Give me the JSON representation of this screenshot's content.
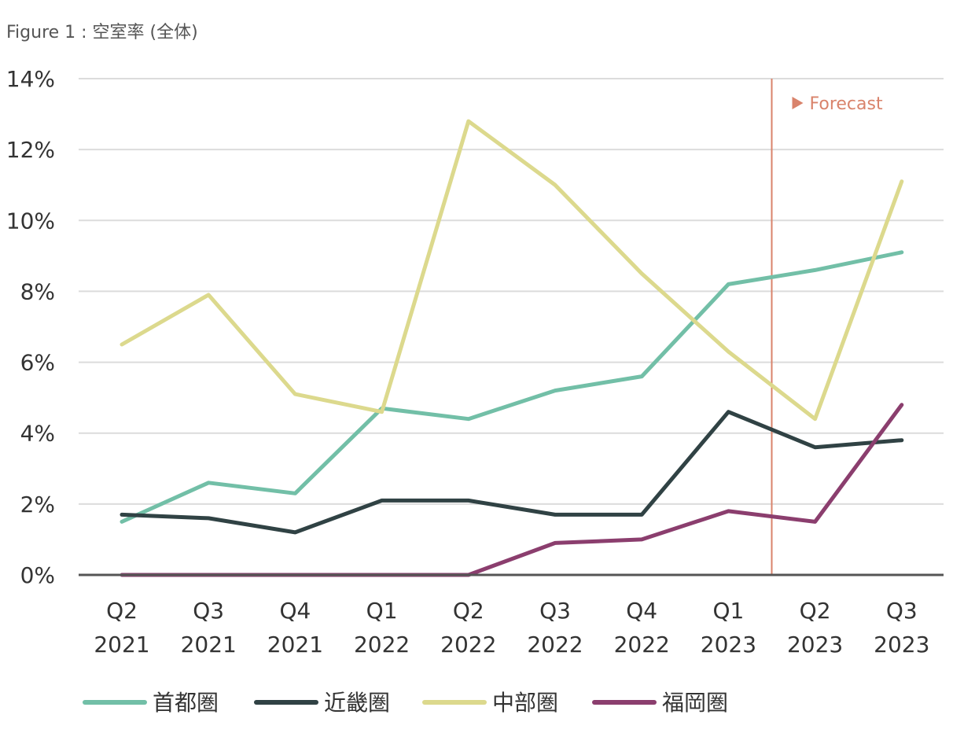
{
  "title": "Figure 1 : 空室率 (全体)",
  "forecast_label": "Forecast",
  "chart_data": {
    "type": "line",
    "title": "Figure 1 : 空室率 (全体)",
    "xlabel": "",
    "ylabel": "",
    "categories": [
      [
        "Q2",
        "2021"
      ],
      [
        "Q3",
        "2021"
      ],
      [
        "Q4",
        "2021"
      ],
      [
        "Q1",
        "2022"
      ],
      [
        "Q2",
        "2022"
      ],
      [
        "Q3",
        "2022"
      ],
      [
        "Q4",
        "2022"
      ],
      [
        "Q1",
        "2023"
      ],
      [
        "Q2",
        "2023"
      ],
      [
        "Q3",
        "2023"
      ]
    ],
    "ylim": [
      0,
      14
    ],
    "yticks": [
      0,
      2,
      4,
      6,
      8,
      10,
      12,
      14
    ],
    "ytick_suffix": "%",
    "grid": true,
    "legend_position": "bottom",
    "forecast_between": [
      7,
      8
    ],
    "forecast_color": "#d9836b",
    "axis_color": "#555555",
    "grid_color": "#dcdcdc",
    "series": [
      {
        "name": "首都圏",
        "color": "#72bfa7",
        "values": [
          1.5,
          2.6,
          2.3,
          4.7,
          4.4,
          5.2,
          5.6,
          8.2,
          8.6,
          9.1
        ]
      },
      {
        "name": "近畿圏",
        "color": "#304244",
        "values": [
          1.7,
          1.6,
          1.2,
          2.1,
          2.1,
          1.7,
          1.7,
          4.6,
          3.6,
          3.8
        ]
      },
      {
        "name": "中部圏",
        "color": "#dcd98d",
        "values": [
          6.5,
          7.9,
          5.1,
          4.6,
          12.8,
          11.0,
          8.5,
          6.3,
          4.4,
          11.1
        ]
      },
      {
        "name": "福岡圏",
        "color": "#8b3e6e",
        "values": [
          0.0,
          0.0,
          0.0,
          0.0,
          0.0,
          0.9,
          1.0,
          1.8,
          1.5,
          4.8
        ]
      }
    ]
  }
}
